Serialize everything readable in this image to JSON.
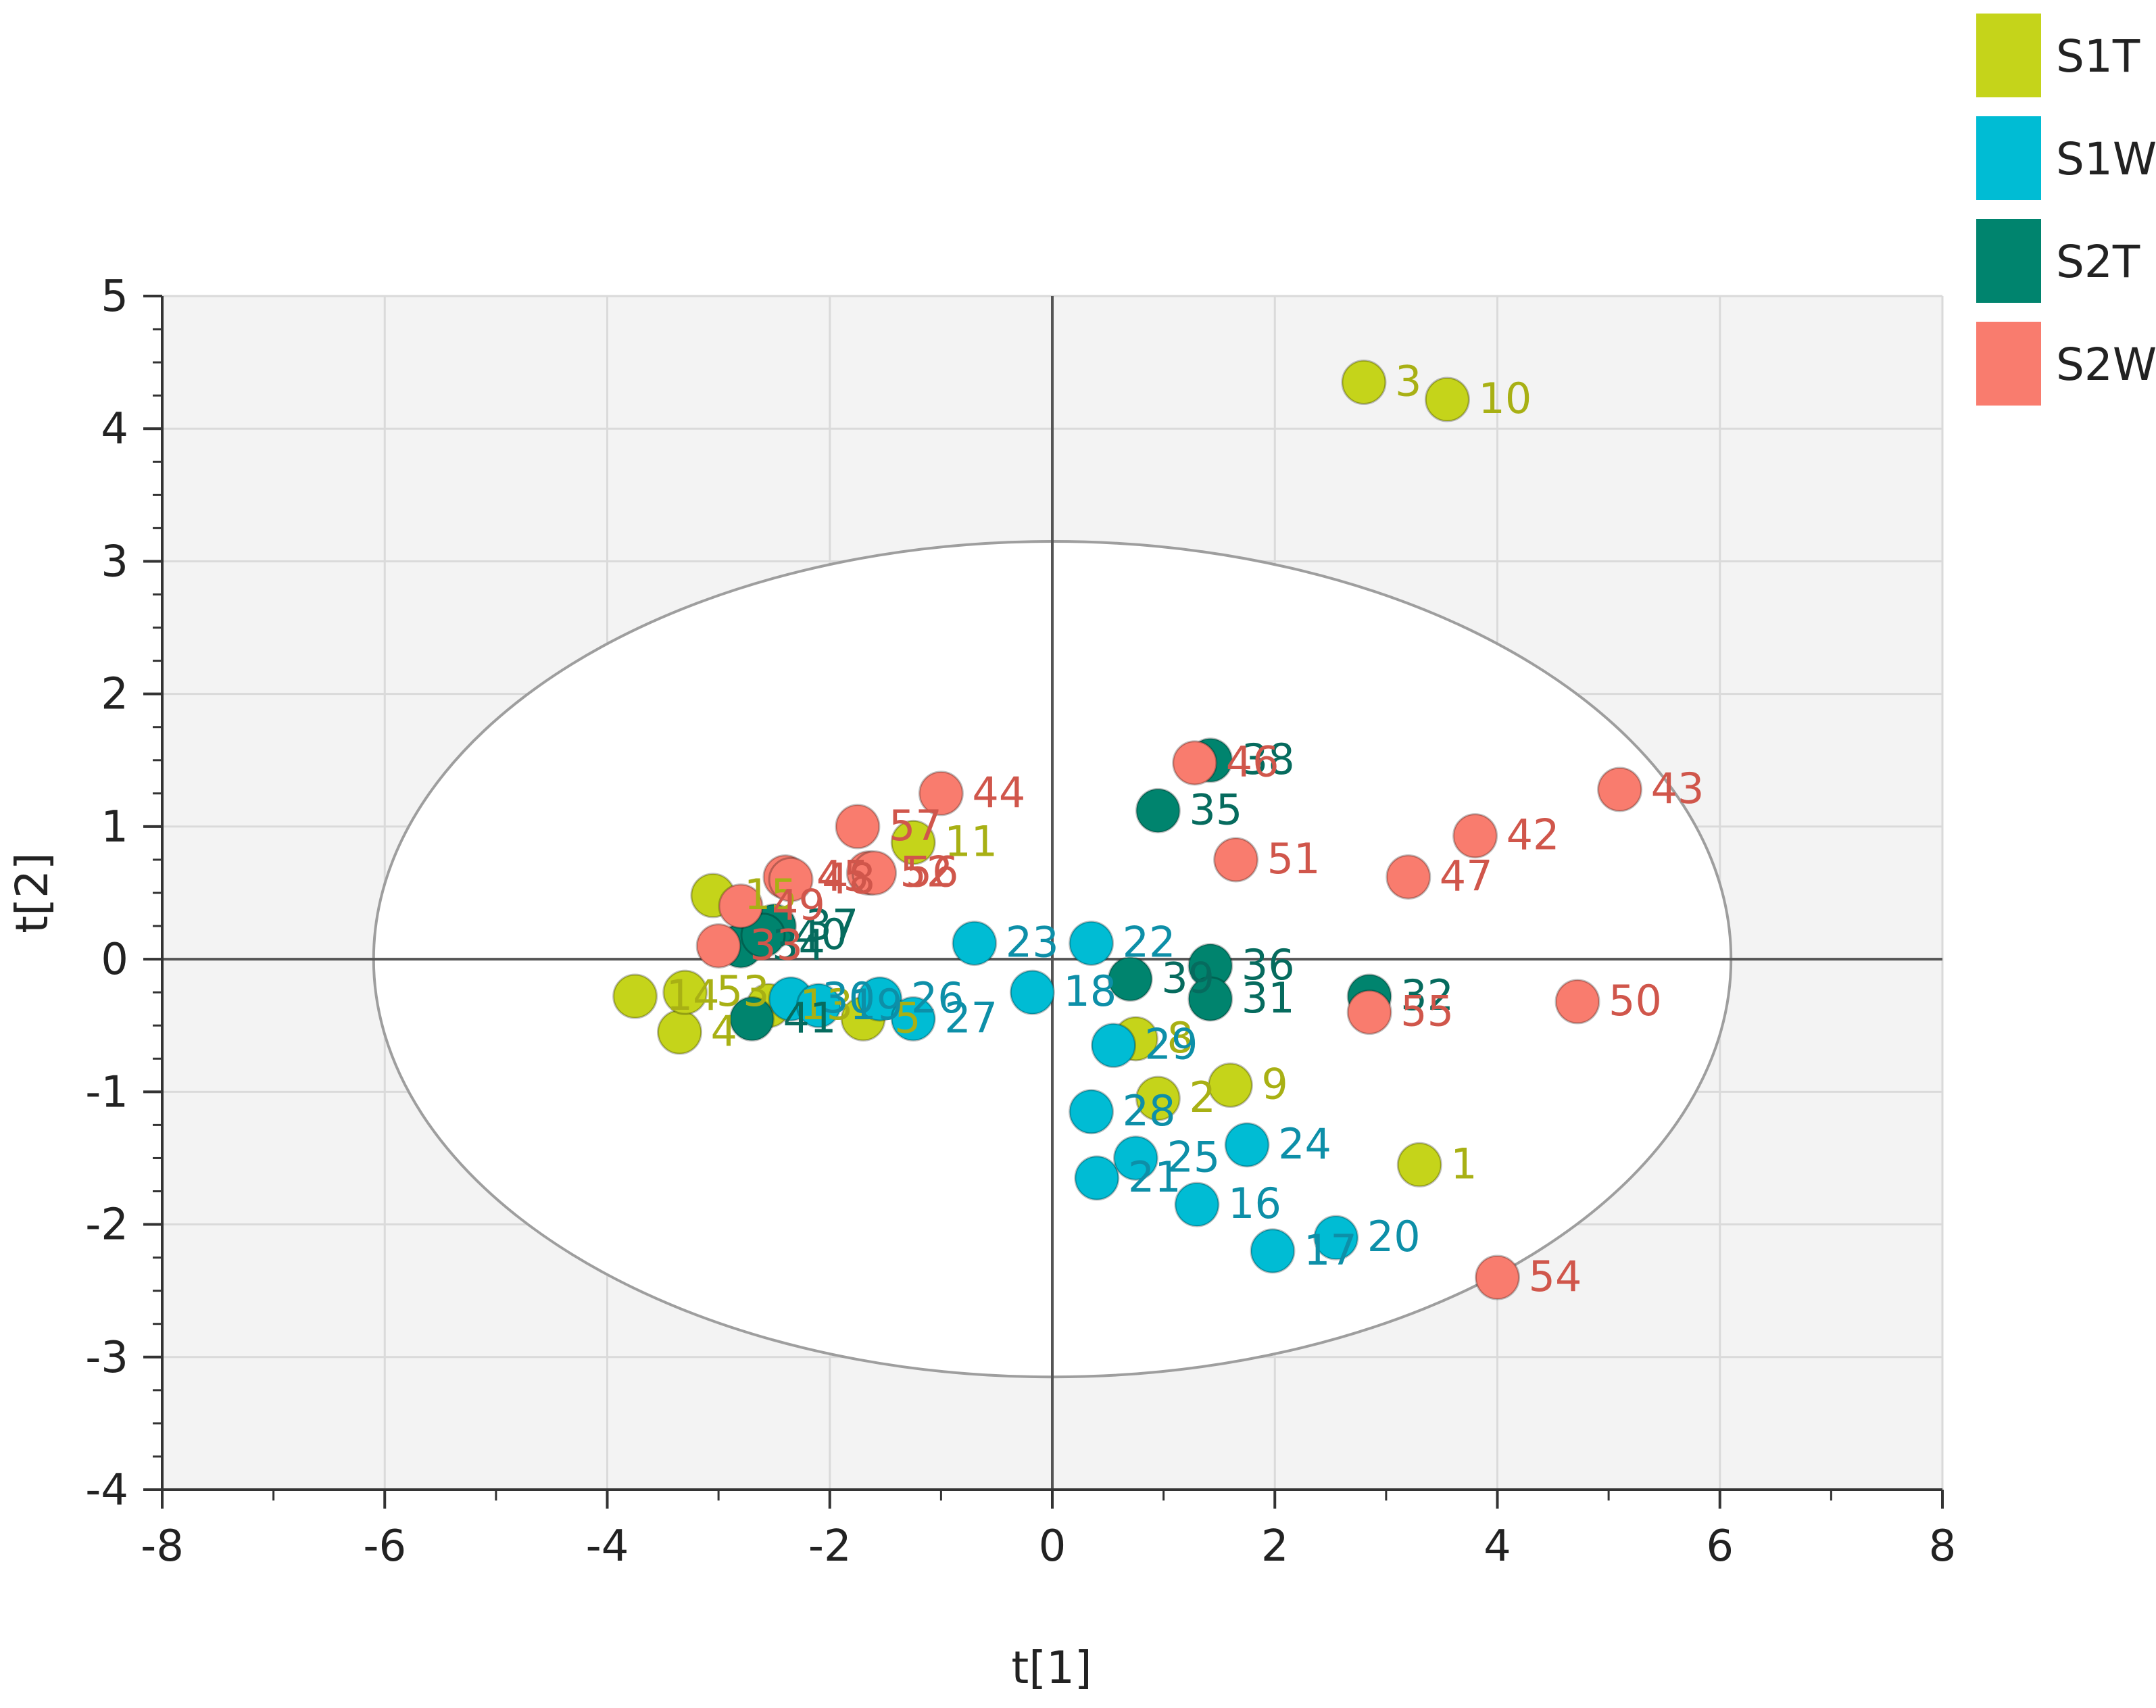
{
  "chart_data": {
    "type": "scatter",
    "title": "",
    "xlabel": "t[1]",
    "ylabel": "t[2]",
    "xlim": [
      -8,
      8
    ],
    "ylim": [
      -4,
      5
    ],
    "xticks": [
      "-8",
      "-6",
      "-4",
      "-2",
      "0",
      "2",
      "4",
      "6",
      "8"
    ],
    "yticks": [
      "5",
      "4",
      "3",
      "2",
      "1",
      "0",
      "-1",
      "-2",
      "-3",
      "-4"
    ],
    "grid": true,
    "legend_position": "top-right",
    "ellipse": {
      "cx": 0,
      "cy": 0,
      "rx": 6.1,
      "ry": 3.15
    },
    "series": [
      {
        "name": "S1T",
        "color": "#c5d41a",
        "label_color": "#a8b014",
        "points": [
          {
            "label": "3",
            "x": 2.8,
            "y": 4.35
          },
          {
            "label": "10",
            "x": 3.55,
            "y": 4.22
          },
          {
            "label": "11",
            "x": -1.25,
            "y": 0.88
          },
          {
            "label": "15",
            "x": -3.05,
            "y": 0.48
          },
          {
            "label": "14",
            "x": -3.75,
            "y": -0.28
          },
          {
            "label": "4",
            "x": -3.35,
            "y": -0.55
          },
          {
            "label": "53",
            "x": -3.3,
            "y": -0.25
          },
          {
            "label": "13",
            "x": -2.55,
            "y": -0.35
          },
          {
            "label": "5",
            "x": -1.7,
            "y": -0.45
          },
          {
            "label": "8",
            "x": 0.75,
            "y": -0.6
          },
          {
            "label": "2",
            "x": 0.95,
            "y": -1.05
          },
          {
            "label": "9",
            "x": 1.6,
            "y": -0.95
          },
          {
            "label": "1",
            "x": 3.3,
            "y": -1.55
          }
        ]
      },
      {
        "name": "S1W",
        "color": "#00bcd4",
        "label_color": "#0d8fa8",
        "points": [
          {
            "label": "23",
            "x": -0.7,
            "y": 0.12
          },
          {
            "label": "22",
            "x": 0.35,
            "y": 0.12
          },
          {
            "label": "18",
            "x": -0.18,
            "y": -0.25
          },
          {
            "label": "30",
            "x": -2.35,
            "y": -0.3
          },
          {
            "label": "19",
            "x": -2.1,
            "y": -0.35
          },
          {
            "label": "26",
            "x": -1.55,
            "y": -0.3
          },
          {
            "label": "27",
            "x": -1.25,
            "y": -0.45
          },
          {
            "label": "29",
            "x": 0.55,
            "y": -0.65
          },
          {
            "label": "28",
            "x": 0.35,
            "y": -1.15
          },
          {
            "label": "21",
            "x": 0.4,
            "y": -1.65
          },
          {
            "label": "25",
            "x": 0.75,
            "y": -1.5
          },
          {
            "label": "16",
            "x": 1.3,
            "y": -1.85
          },
          {
            "label": "24",
            "x": 1.75,
            "y": -1.4
          },
          {
            "label": "17",
            "x": 1.98,
            "y": -2.2
          },
          {
            "label": "20",
            "x": 2.55,
            "y": -2.1
          }
        ]
      },
      {
        "name": "S2T",
        "color": "#00846e",
        "label_color": "#066b5e",
        "points": [
          {
            "label": "38",
            "x": 1.42,
            "y": 1.5
          },
          {
            "label": "35",
            "x": 0.95,
            "y": 1.12
          },
          {
            "label": "34",
            "x": -2.8,
            "y": 0.1
          },
          {
            "label": "37",
            "x": -2.5,
            "y": 0.25
          },
          {
            "label": "40",
            "x": -2.6,
            "y": 0.18
          },
          {
            "label": "36",
            "x": 1.42,
            "y": -0.05
          },
          {
            "label": "39",
            "x": 0.7,
            "y": -0.15
          },
          {
            "label": "31",
            "x": 1.42,
            "y": -0.3
          },
          {
            "label": "32",
            "x": 2.85,
            "y": -0.28
          },
          {
            "label": "41",
            "x": -2.7,
            "y": -0.45
          }
        ]
      },
      {
        "name": "S2W",
        "color": "#f97c6e",
        "label_color": "#d0564b",
        "points": [
          {
            "label": "46",
            "x": 1.28,
            "y": 1.48
          },
          {
            "label": "44",
            "x": -1.0,
            "y": 1.25
          },
          {
            "label": "57",
            "x": -1.75,
            "y": 1.0
          },
          {
            "label": "52",
            "x": -1.65,
            "y": 0.65
          },
          {
            "label": "45",
            "x": -2.4,
            "y": 0.62
          },
          {
            "label": "48",
            "x": -2.35,
            "y": 0.6
          },
          {
            "label": "49",
            "x": -2.8,
            "y": 0.4
          },
          {
            "label": "56",
            "x": -1.6,
            "y": 0.65
          },
          {
            "label": "33",
            "x": -3.0,
            "y": 0.1
          },
          {
            "label": "51",
            "x": 1.65,
            "y": 0.75
          },
          {
            "label": "47",
            "x": 3.2,
            "y": 0.62
          },
          {
            "label": "42",
            "x": 3.8,
            "y": 0.93
          },
          {
            "label": "43",
            "x": 5.1,
            "y": 1.28
          },
          {
            "label": "50",
            "x": 4.72,
            "y": -0.32
          },
          {
            "label": "55",
            "x": 2.85,
            "y": -0.4
          },
          {
            "label": "54",
            "x": 4.0,
            "y": -2.4
          }
        ]
      }
    ]
  }
}
